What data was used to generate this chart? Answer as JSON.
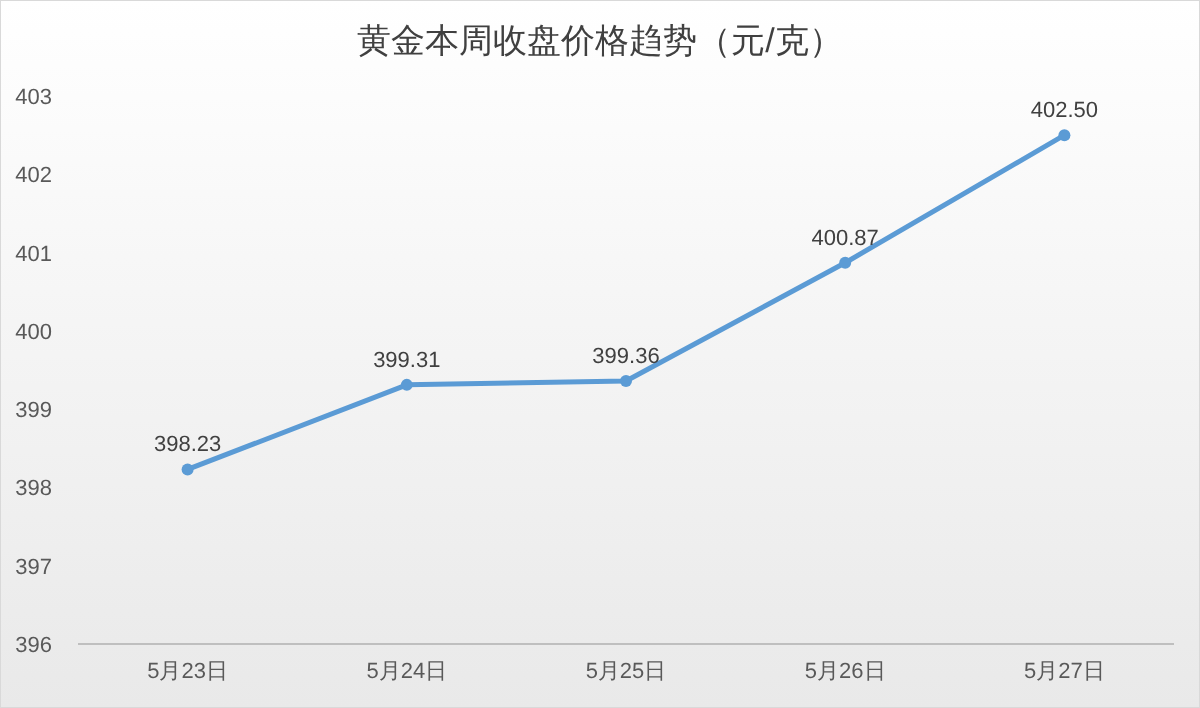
{
  "chart_data": {
    "type": "line",
    "title": "黄金本周收盘价格趋势（元/克）",
    "categories": [
      "5月23日",
      "5月24日",
      "5月25日",
      "5月26日",
      "5月27日"
    ],
    "series": [
      {
        "color": "#5b9bd5",
        "values": [
          398.23,
          399.31,
          399.36,
          400.87,
          402.5
        ],
        "value_labels": [
          "398.23",
          "399.31",
          "399.36",
          "400.87",
          "402.50"
        ]
      }
    ],
    "ylim": [
      396,
      403
    ],
    "yticks": [
      396,
      397,
      398,
      399,
      400,
      401,
      402,
      403
    ],
    "marker": "circle",
    "grid": false
  }
}
